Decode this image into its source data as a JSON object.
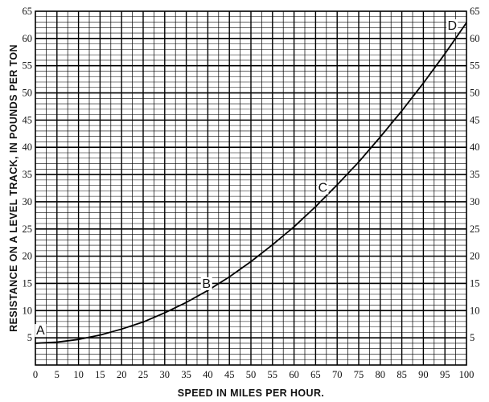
{
  "chart_data": {
    "type": "line",
    "title": "",
    "xlabel": "SPEED IN MILES PER HOUR.",
    "ylabel": "RESISTANCE ON A LEVEL TRACK, IN POUNDS PER TON",
    "xlim": [
      0,
      100
    ],
    "ylim": [
      0,
      65
    ],
    "x_ticks": [
      "0",
      "5",
      "10",
      "15",
      "20",
      "25",
      "30",
      "35",
      "40",
      "45",
      "50",
      "55",
      "60",
      "65",
      "70",
      "75",
      "80",
      "85",
      "90",
      "95",
      "100"
    ],
    "y_ticks": [
      "5",
      "10",
      "15",
      "20",
      "25",
      "30",
      "35",
      "40",
      "45",
      "50",
      "55",
      "60",
      "65"
    ],
    "y_ticks_left": [
      "5",
      "10",
      "15",
      "20",
      "25",
      "30",
      "35",
      "40",
      "45",
      "50",
      "55",
      "60",
      "65"
    ],
    "grid": true,
    "series": [
      {
        "x": [
          0,
          5,
          10,
          15,
          20,
          25,
          30,
          35,
          40,
          45,
          50,
          55,
          60,
          65,
          70,
          75,
          80,
          85,
          90,
          95,
          100
        ],
        "y": [
          4.0,
          4.2,
          4.7,
          5.5,
          6.6,
          7.9,
          9.6,
          11.5,
          13.7,
          16.2,
          19.0,
          22.1,
          25.4,
          29.1,
          33.1,
          37.3,
          41.9,
          46.7,
          51.8,
          57.2,
          62.9
        ]
      }
    ],
    "annotations": [
      {
        "text": "A",
        "x": 1,
        "y": 5.6
      },
      {
        "text": "B",
        "x": 39.5,
        "y": 14.2
      },
      {
        "text": "C",
        "x": 66.5,
        "y": 31.8
      },
      {
        "text": "D",
        "x": 96.5,
        "y": 61.6
      }
    ]
  }
}
